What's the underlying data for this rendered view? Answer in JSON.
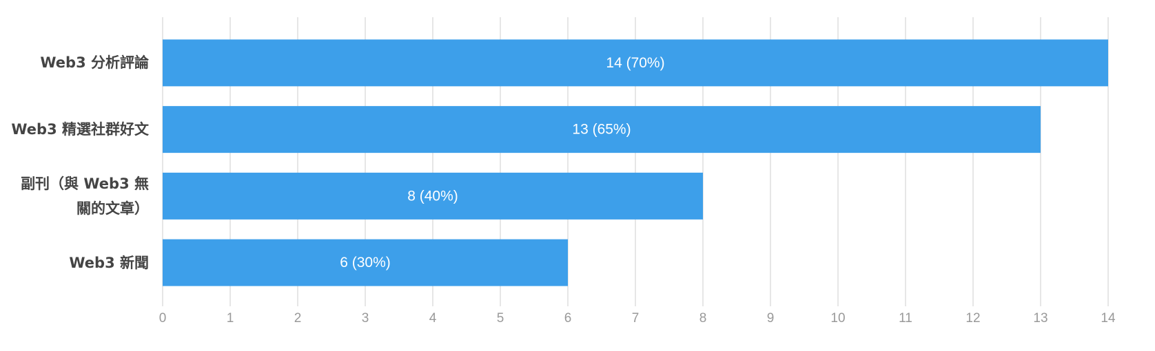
{
  "chart_data": {
    "type": "barh",
    "categories": [
      "Web3 分析評論",
      "Web3 精選社群好文",
      "副刊（與 Web3 無關的文章）",
      "Web3 新聞"
    ],
    "values": [
      14,
      13,
      8,
      6
    ],
    "value_labels": [
      "14 (70%)",
      "13 (65%)",
      "8 (40%)",
      "6 (30%)"
    ],
    "color": "#3d9fea",
    "xlim": [
      0,
      14
    ],
    "xticks": [
      0,
      1,
      2,
      3,
      4,
      5,
      6,
      7,
      8,
      9,
      10,
      11,
      12,
      13,
      14
    ],
    "grid": true
  }
}
